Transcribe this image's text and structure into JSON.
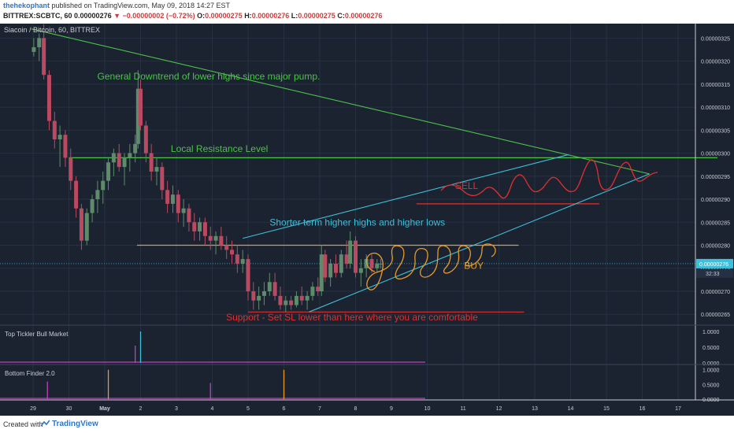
{
  "header": {
    "username": "thehekophant",
    "published": "published on TradingView.com, May 09, 2018 14:27 EST",
    "symbol": "BITTREX:SCBTC, 60",
    "last": "0.00000276",
    "change": "▼ −0.00000002 (−0.72%)",
    "o_label": "O:",
    "o_value": "0.00000275",
    "h_label": "H:",
    "h_value": "0.00000276",
    "l_label": "L:",
    "l_value": "0.00000275",
    "c_label": "C:",
    "c_value": "0.00000276"
  },
  "footer": {
    "created_with": "Created with",
    "brand": "TradingView"
  },
  "colors": {
    "background": "#1b2331",
    "up": "#5e8c6a",
    "down": "#b94a62",
    "green_line": "#4cc24a",
    "cyan_line": "#3fbfd9",
    "orange": "#e89a2a",
    "red": "#e0302f"
  },
  "chart_data": [
    {
      "type": "candlestick",
      "title": "Siacoin / Bitcoin, 60, BITTREX",
      "x_ticks": [
        "29",
        "30",
        "May",
        "2",
        "3",
        "4",
        "5",
        "6",
        "7",
        "8",
        "9",
        "10",
        "11",
        "12",
        "13",
        "14",
        "15",
        "16",
        "17"
      ],
      "y_ticks": [
        "0.00000325",
        "0.00000320",
        "0.00000315",
        "0.00000310",
        "0.00000305",
        "0.00000300",
        "0.00000295",
        "0.00000290",
        "0.00000285",
        "0.00000280",
        "0.00000275",
        "0.00000270",
        "0.00000265"
      ],
      "ylim": [
        2.635e-06,
        3.278e-06
      ],
      "price_label": "0.00000276",
      "countdown_label": "32:33",
      "annotations": [
        {
          "text": "General Downtrend of lower highs since major pump.",
          "color": "#4cc24a"
        },
        {
          "text": "Local Resistance Level",
          "color": "#4cc24a"
        },
        {
          "text": "SELL",
          "color": "#e0302f"
        },
        {
          "text": "Shorter term higher highs and higher lows",
          "color": "#3fbfd9"
        },
        {
          "text": "BUY",
          "color": "#e89a2a"
        },
        {
          "text": "Support - Set SL lower than here where you are comfortable",
          "color": "#e0302f"
        }
      ],
      "levels": [
        {
          "name": "local-resistance",
          "value": 2.99e-06,
          "color": "#4cc24a"
        },
        {
          "name": "horizontal-buy-line",
          "value": 2.8e-06,
          "color": "#e89a2a"
        },
        {
          "name": "sell-line",
          "value": 2.89e-06,
          "color": "#e0302f"
        },
        {
          "name": "support",
          "value": 2.655e-06,
          "color": "#e0302f"
        }
      ],
      "trendlines": [
        {
          "name": "general-downtrend",
          "from": [
            -0.05,
            3.27e-06
          ],
          "to": [
            17.2,
            2.955e-06
          ],
          "color": "#4cc24a"
        },
        {
          "name": "upper-channel",
          "from": [
            5.85,
            2.815e-06
          ],
          "to": [
            14.95,
            2.997e-06
          ],
          "color": "#3fbfd9"
        },
        {
          "name": "lower-channel",
          "from": [
            7.7,
            2.655e-06
          ],
          "to": [
            17.2,
            2.955e-06
          ],
          "color": "#3fbfd9"
        }
      ],
      "candles": [
        [
          0.02,
          3.22e-06,
          3.25e-06,
          3.21e-06,
          3.23e-06
        ],
        [
          0.17,
          3.23e-06,
          3.26e-06,
          3.2e-06,
          3.25e-06
        ],
        [
          0.3,
          3.25e-06,
          3.28e-06,
          3.16e-06,
          3.17e-06
        ],
        [
          0.45,
          3.17e-06,
          3.18e-06,
          3.05e-06,
          3.07e-06
        ],
        [
          0.6,
          3.07e-06,
          3.09e-06,
          3.01e-06,
          3.03e-06
        ],
        [
          0.75,
          3.03e-06,
          3.06e-06,
          2.97e-06,
          3.04e-06
        ],
        [
          0.9,
          3.04e-06,
          3.05e-06,
          2.97e-06,
          2.99e-06
        ],
        [
          1.05,
          2.99e-06,
          3.01e-06,
          2.92e-06,
          2.94e-06
        ],
        [
          1.2,
          2.94e-06,
          2.95e-06,
          2.86e-06,
          2.88e-06
        ],
        [
          1.35,
          2.88e-06,
          2.89e-06,
          2.79e-06,
          2.81e-06
        ],
        [
          1.5,
          2.81e-06,
          2.88e-06,
          2.8e-06,
          2.87e-06
        ],
        [
          1.65,
          2.87e-06,
          2.91e-06,
          2.85e-06,
          2.9e-06
        ],
        [
          1.8,
          2.9e-06,
          2.94e-06,
          2.87e-06,
          2.92e-06
        ],
        [
          1.95,
          2.92e-06,
          2.96e-06,
          2.89e-06,
          2.94e-06
        ],
        [
          2.1,
          2.94e-06,
          2.99e-06,
          2.92e-06,
          2.98e-06
        ],
        [
          2.25,
          2.98e-06,
          3.01e-06,
          2.95e-06,
          3e-06
        ],
        [
          2.4,
          3e-06,
          3.02e-06,
          2.96e-06,
          2.97e-06
        ],
        [
          2.55,
          2.97e-06,
          3e-06,
          2.93e-06,
          2.99e-06
        ],
        [
          2.7,
          2.99e-06,
          3.02e-06,
          2.96e-06,
          3e-06
        ],
        [
          2.85,
          3e-06,
          3.04e-06,
          2.98e-06,
          3.02e-06
        ],
        [
          2.93,
          3.02e-06,
          3.18e-06,
          3.01e-06,
          3.14e-06
        ],
        [
          3.0,
          3.14e-06,
          3.16e-06,
          3.05e-06,
          3.06e-06
        ],
        [
          3.15,
          3.06e-06,
          3.07e-06,
          2.98e-06,
          3e-06
        ],
        [
          3.3,
          3e-06,
          3.02e-06,
          2.94e-06,
          2.96e-06
        ],
        [
          3.45,
          2.96e-06,
          2.99e-06,
          2.93e-06,
          2.97e-06
        ],
        [
          3.6,
          2.97e-06,
          2.98e-06,
          2.9e-06,
          2.92e-06
        ],
        [
          3.75,
          2.92e-06,
          2.94e-06,
          2.87e-06,
          2.89e-06
        ],
        [
          3.9,
          2.89e-06,
          2.93e-06,
          2.87e-06,
          2.91e-06
        ],
        [
          4.05,
          2.91e-06,
          2.92e-06,
          2.85e-06,
          2.87e-06
        ],
        [
          4.2,
          2.87e-06,
          2.9e-06,
          2.84e-06,
          2.88e-06
        ],
        [
          4.35,
          2.88e-06,
          2.89e-06,
          2.83e-06,
          2.85e-06
        ],
        [
          4.5,
          2.85e-06,
          2.87e-06,
          2.81e-06,
          2.83e-06
        ],
        [
          4.65,
          2.83e-06,
          2.86e-06,
          2.81e-06,
          2.85e-06
        ],
        [
          4.8,
          2.85e-06,
          2.86e-06,
          2.8e-06,
          2.82e-06
        ],
        [
          4.95,
          2.82e-06,
          2.84e-06,
          2.79e-06,
          2.81e-06
        ],
        [
          5.1,
          2.81e-06,
          2.83e-06,
          2.78e-06,
          2.82e-06
        ],
        [
          5.25,
          2.82e-06,
          2.84e-06,
          2.79e-06,
          2.8e-06
        ],
        [
          5.4,
          2.8e-06,
          2.82e-06,
          2.77e-06,
          2.79e-06
        ],
        [
          5.55,
          2.79e-06,
          2.81e-06,
          2.76e-06,
          2.78e-06
        ],
        [
          5.7,
          2.78e-06,
          2.8e-06,
          2.74e-06,
          2.76e-06
        ],
        [
          5.85,
          2.76e-06,
          2.79e-06,
          2.74e-06,
          2.77e-06
        ],
        [
          6.0,
          2.77e-06,
          2.78e-06,
          2.68e-06,
          2.7e-06
        ],
        [
          6.15,
          2.7e-06,
          2.72e-06,
          2.66e-06,
          2.68e-06
        ],
        [
          6.3,
          2.68e-06,
          2.71e-06,
          2.66e-06,
          2.69e-06
        ],
        [
          6.45,
          2.69e-06,
          2.72e-06,
          2.67e-06,
          2.7e-06
        ],
        [
          6.6,
          2.7e-06,
          2.74e-06,
          2.69e-06,
          2.72e-06
        ],
        [
          6.75,
          2.72e-06,
          2.74e-06,
          2.68e-06,
          2.69e-06
        ],
        [
          6.9,
          2.69e-06,
          2.71e-06,
          2.66e-06,
          2.67e-06
        ],
        [
          7.05,
          2.67e-06,
          2.69e-06,
          2.655e-06,
          2.68e-06
        ],
        [
          7.2,
          2.68e-06,
          2.69e-06,
          2.66e-06,
          2.67e-06
        ],
        [
          7.35,
          2.67e-06,
          2.7e-06,
          2.665e-06,
          2.69e-06
        ],
        [
          7.5,
          2.69e-06,
          2.71e-06,
          2.67e-06,
          2.68e-06
        ],
        [
          7.65,
          2.68e-06,
          2.7e-06,
          2.66e-06,
          2.69e-06
        ],
        [
          7.8,
          2.69e-06,
          2.72e-06,
          2.68e-06,
          2.71e-06
        ],
        [
          7.95,
          2.71e-06,
          2.73e-06,
          2.69e-06,
          2.7e-06
        ],
        [
          8.05,
          2.7e-06,
          2.8e-06,
          2.69e-06,
          2.78e-06
        ],
        [
          8.15,
          2.78e-06,
          2.79e-06,
          2.72e-06,
          2.73e-06
        ],
        [
          8.3,
          2.73e-06,
          2.77e-06,
          2.71e-06,
          2.76e-06
        ],
        [
          8.45,
          2.76e-06,
          2.78e-06,
          2.73e-06,
          2.74e-06
        ],
        [
          8.6,
          2.74e-06,
          2.79e-06,
          2.73e-06,
          2.78e-06
        ],
        [
          8.75,
          2.78e-06,
          2.81e-06,
          2.75e-06,
          2.76e-06
        ],
        [
          8.85,
          2.76e-06,
          2.83e-06,
          2.75e-06,
          2.81e-06
        ],
        [
          9.0,
          2.81e-06,
          2.82e-06,
          2.73e-06,
          2.74e-06
        ],
        [
          9.15,
          2.74e-06,
          2.77e-06,
          2.71e-06,
          2.75e-06
        ],
        [
          9.3,
          2.75e-06,
          2.78e-06,
          2.73e-06,
          2.77e-06
        ],
        [
          9.45,
          2.77e-06,
          2.78e-06,
          2.74e-06,
          2.75e-06
        ],
        [
          9.6,
          2.75e-06,
          2.77e-06,
          2.74e-06,
          2.76e-06
        ],
        [
          9.7,
          2.76e-06,
          2.77e-06,
          2.75e-06,
          2.76e-06
        ]
      ]
    },
    {
      "type": "bar",
      "title": "Top Tickler Bull Market",
      "y_ticks": [
        "1.0000",
        "0.5000",
        "0.0000"
      ],
      "ylim": [
        0,
        1.1
      ],
      "spikes": [
        {
          "x": 2.85,
          "value": 0.55,
          "color": "#c040c0"
        },
        {
          "x": 3.0,
          "value": 1.0,
          "color": "#3fbfd9"
        }
      ]
    },
    {
      "type": "bar",
      "title": "Bottom Finder 2.0",
      "y_ticks": [
        "1.0000",
        "0.5000",
        "0.0000"
      ],
      "ylim": [
        0,
        1.1
      ],
      "spikes": [
        {
          "x": 0.4,
          "value": 0.6,
          "color": "#c040c0"
        },
        {
          "x": 2.1,
          "value": 1.0,
          "color": "#e89a2a"
        },
        {
          "x": 4.95,
          "value": 0.55,
          "color": "#c040c0"
        },
        {
          "x": 7.0,
          "value": 1.0,
          "color": "#e89a2a"
        }
      ]
    }
  ]
}
